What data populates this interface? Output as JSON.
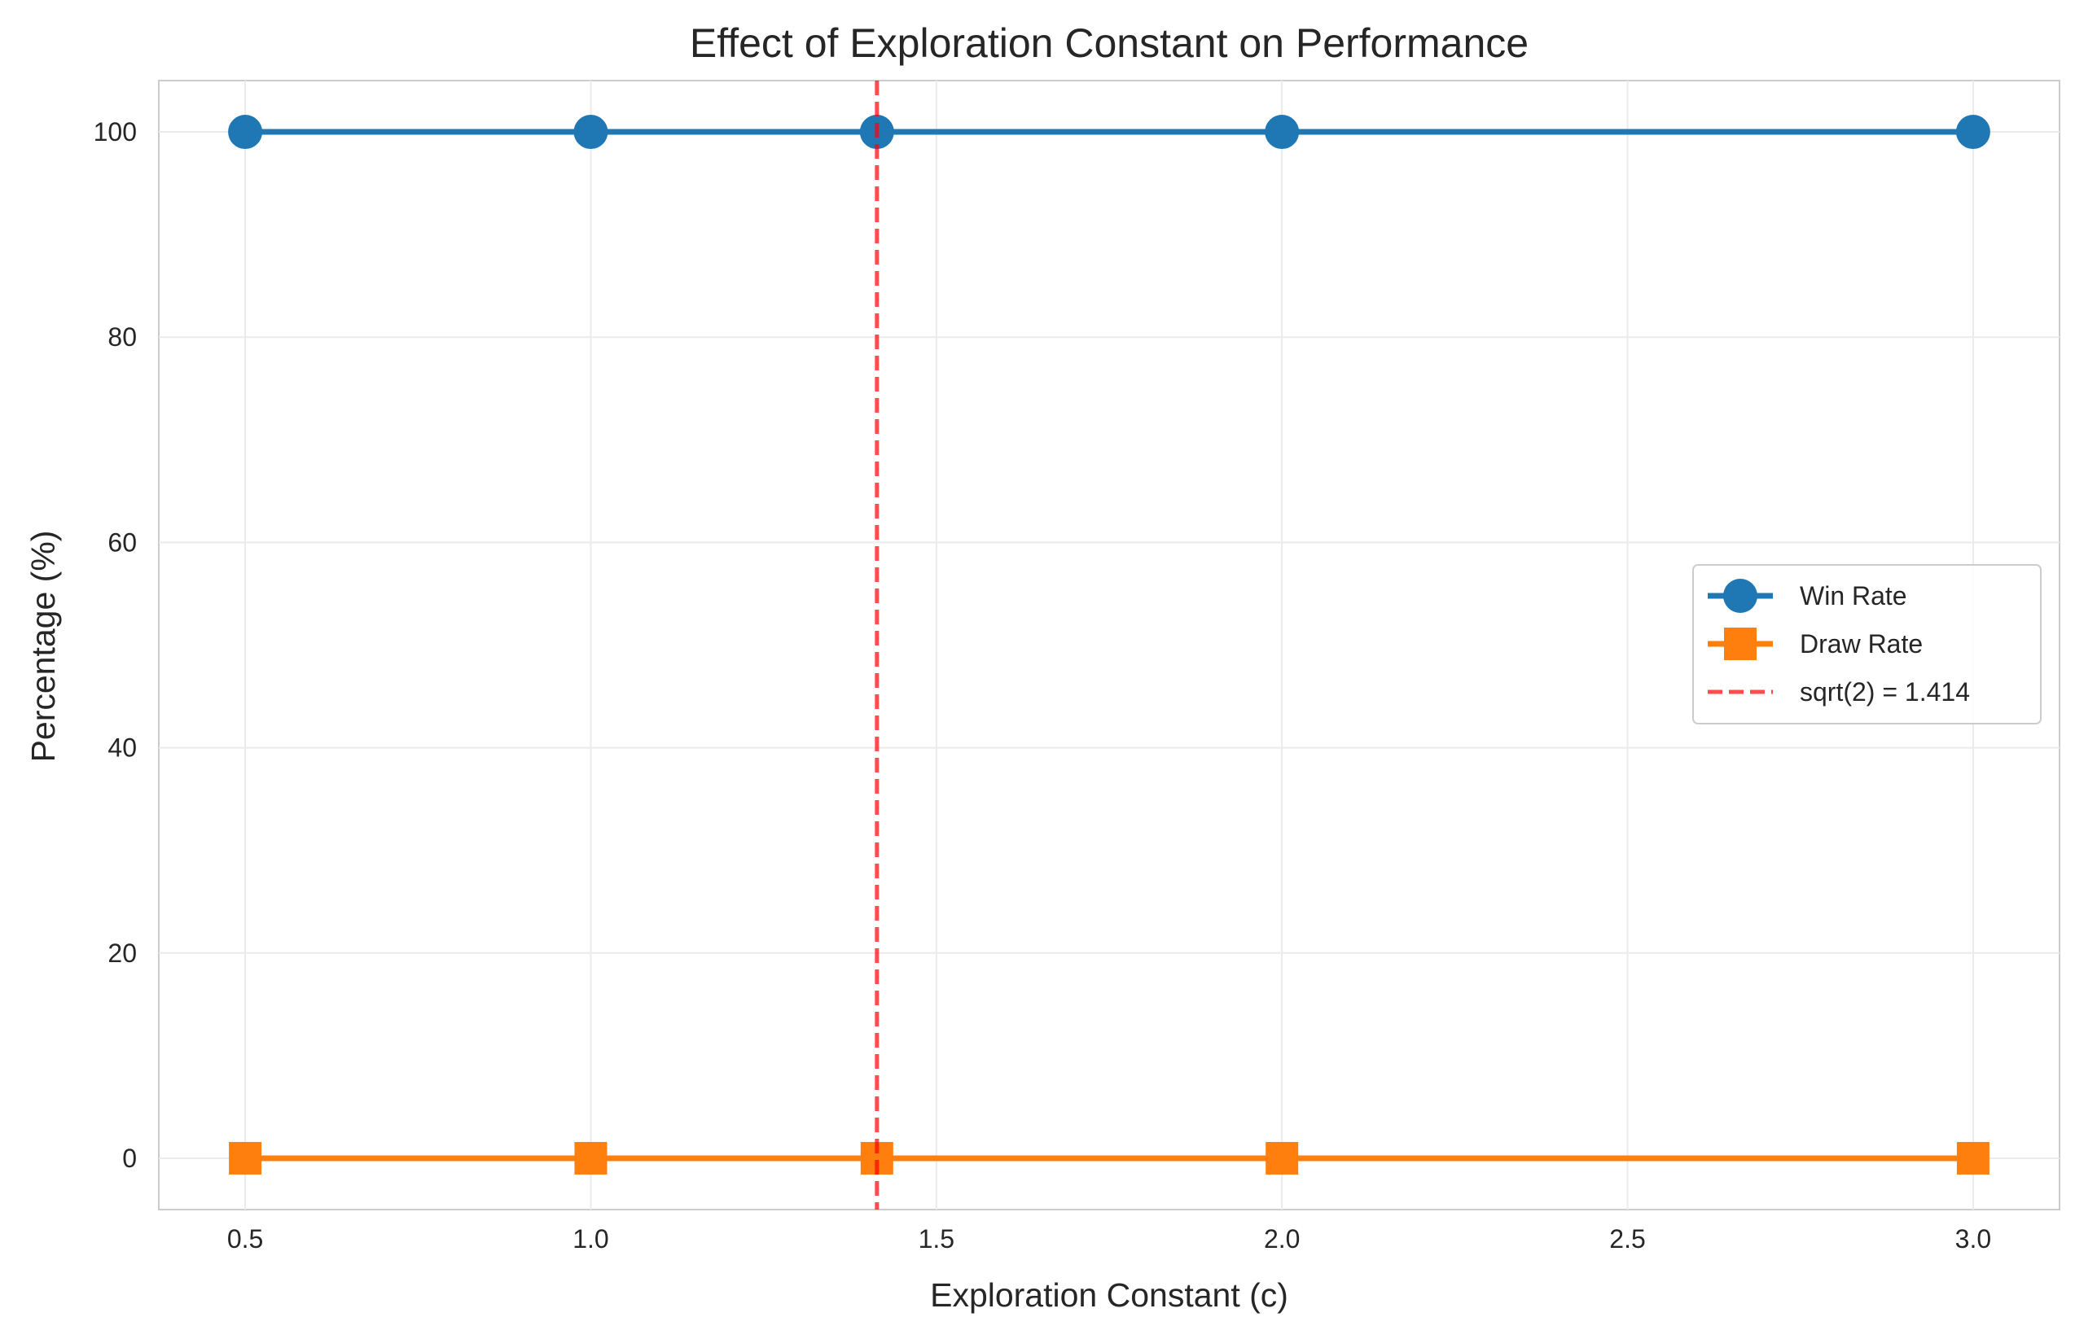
{
  "chart_data": {
    "type": "line",
    "title": "Effect of Exploration Constant on Performance",
    "xlabel": "Exploration Constant (c)",
    "ylabel": "Percentage (%)",
    "x": [
      0.5,
      1.0,
      1.414,
      2.0,
      3.0
    ],
    "xlim": [
      0.375,
      3.125
    ],
    "ylim": [
      -5,
      105
    ],
    "xticks": [
      0.5,
      1.0,
      1.5,
      2.0,
      2.5,
      3.0
    ],
    "xtick_labels": [
      "0.5",
      "1.0",
      "1.5",
      "2.0",
      "2.5",
      "3.0"
    ],
    "yticks": [
      0,
      20,
      40,
      60,
      80,
      100
    ],
    "ytick_labels": [
      "0",
      "20",
      "40",
      "60",
      "80",
      "100"
    ],
    "grid": true,
    "legend_position": "center-right",
    "series": [
      {
        "name": "Win Rate",
        "values": [
          100,
          100,
          100,
          100,
          100
        ],
        "color": "#1f77b4",
        "marker": "circle",
        "line_style": "solid"
      },
      {
        "name": "Draw Rate",
        "values": [
          0,
          0,
          0,
          0,
          0
        ],
        "color": "#ff7f0e",
        "marker": "square",
        "line_style": "solid"
      }
    ],
    "reference_lines": [
      {
        "name": "sqrt(2) = 1.414",
        "orientation": "vertical",
        "x": 1.414,
        "color": "#ff0000",
        "line_style": "dashed"
      }
    ]
  }
}
